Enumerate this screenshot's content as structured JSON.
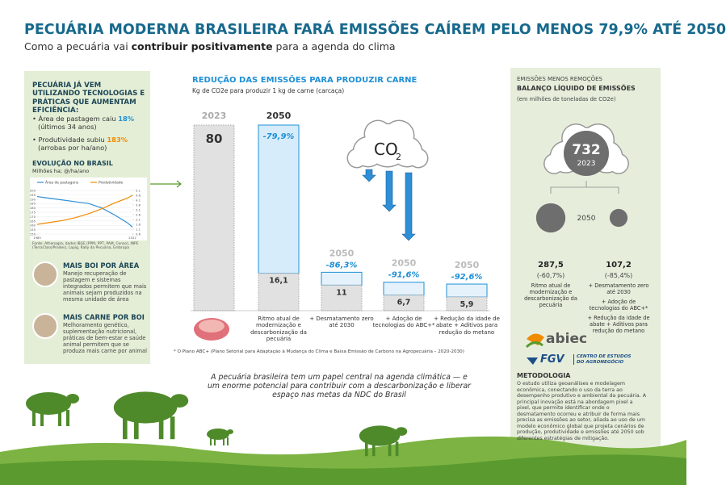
{
  "header": {
    "title": "PECUÁRIA MODERNA BRASILEIRA FARÁ EMISSÕES CAÍREM PELO MENOS 79,9% ATÉ 2050",
    "subtitle": [
      "Como a pecuária vai ",
      "contribuir positivamente",
      " para a agenda do clima"
    ]
  },
  "left_panel": {
    "heading": "PECUÁRIA JÁ VEM UTILIZANDO TECNOLOGIAS E PRÁTICAS QUE AUMENTAM EFICIÊNCIA:",
    "bullets": [
      {
        "text": "• Área de pastagem caiu ",
        "highlight": "18%",
        "note": "(últimos 34 anos)"
      },
      {
        "text": "• Produtividade subiu ",
        "highlight": "183%",
        "note": "(arrobas por ha/ano)"
      }
    ],
    "evolution": {
      "title": "EVOLUÇÃO NO BRASIL",
      "unit": "Milhões ha; @/ha/ano",
      "legend": [
        "Área de pastagens",
        "Produtividade"
      ],
      "x": [
        1985,
        1990,
        1995,
        2000,
        2005,
        2010,
        2015,
        2020,
        2022
      ],
      "pasture": [
        193,
        191,
        189,
        187,
        185,
        180,
        172,
        163,
        158
      ],
      "productivity": [
        1.6,
        1.8,
        2.0,
        2.3,
        2.7,
        3.2,
        3.8,
        4.3,
        4.6
      ],
      "xlim": [
        1985,
        2022
      ],
      "xticks": [
        1985,
        2022
      ],
      "ylim": [
        150,
        200
      ],
      "yticks": [
        150,
        155,
        160,
        165,
        170,
        175,
        180,
        185,
        190,
        195,
        200
      ],
      "y2lim": [
        0.6,
        5.1
      ],
      "y2ticks": [
        0.6,
        1.1,
        1.6,
        2.1,
        2.6,
        3.1,
        3.6,
        4.1,
        4.6,
        5.1
      ],
      "source": "Fonte: Athenagro, dados IBGE (PPM, PPT, PAM, Censo), INPE (TerraClass/Prodes), Lapig, Rally da Pecuária, Embrapa"
    },
    "features": [
      {
        "title": "MAIS BOI POR ÁREA",
        "text": "Manejo recuperação de pastagem e sistemas integrados permitem que mais animais sejam produzidos na mesma unidade de área"
      },
      {
        "title": "MAIS CARNE POR BOI",
        "text": "Melhoramento genético, suplementação nutricional, práticas de bem-estar e saúde animal permitem que se produza mais carne por animal"
      }
    ]
  },
  "emissions": {
    "title": "REDUÇÃO DAS EMISSÕES PARA PRODUZIR CARNE",
    "unit": "Kg de CO2e para produzir 1 kg de carne (carcaça)",
    "base": {
      "year": "2023",
      "value": 80
    },
    "scenarios": [
      {
        "year": "2050",
        "value": 16.1,
        "value_label": "16,1",
        "change": {
          "value": -79.9,
          "label": "-79,9%"
        },
        "caption": "Ritmo atual de modernização e descarbonização da pecuária"
      },
      {
        "year": "2050",
        "value": 11,
        "change": {
          "value": -86.3,
          "label": "-86,3%"
        },
        "caption": "+ Desmatamento zero até 2030"
      },
      {
        "year": "2050",
        "value": 6.7,
        "value_label": "6,7",
        "change": {
          "value": -91.6,
          "label": "-91,6%"
        },
        "caption": "+ Adoção de tecnologias do ABC+*"
      },
      {
        "year": "2050",
        "value": 5.9,
        "value_label": "5,9",
        "change": {
          "value": -92.6,
          "label": "-92,6%"
        },
        "caption": "+ Redução da idade de abate + Aditivos para redução do metano"
      }
    ],
    "co2": {
      "main": "CO",
      "sub": "2"
    },
    "footnote": "* O Plano ABC+ (Plano Setorial para Adaptação à Mudança do Clima e Baixa Emissão de Carbono na Agropecuária – 2020-2030)"
  },
  "quote": "A pecuária brasileira tem um papel central na agenda climática — e um enorme potencial para contribuir com a descarbonização e liberar espaço nas metas da NDC do Brasil",
  "balance": {
    "kicker": "EMISSÕES MENOS REMOÇÕES",
    "title": "BALANÇO LÍQUIDO DE EMISSÕES",
    "unit": "(em milhões de toneladas de CO2e)",
    "base": {
      "value": 732,
      "year": "2023"
    },
    "future_year": "2050",
    "scenarios": [
      {
        "value": 287.5,
        "value_label": "287,5",
        "change": {
          "value": -60.7,
          "label": "(-60,7%)"
        },
        "captions": [
          "Ritmo atual de modernização e descarbonização da pecuária"
        ]
      },
      {
        "value": 107.2,
        "value_label": "107,2",
        "change": {
          "value": -85.4,
          "label": "(-85,4%)"
        },
        "captions": [
          "+ Desmatamento zero até 2030",
          "+ Adoção de tecnologias do ABC+*",
          "+ Redução da idade de abate + Aditivos para redução do metano"
        ]
      }
    ]
  },
  "logos": {
    "abiec": "abiec",
    "fgv": "FGV",
    "fgv_center": "CENTRO DE ESTUDOS DO AGRONEGÓCIO"
  },
  "methodology": {
    "title": "METODOLOGIA",
    "text": "O estudo utiliza geoanálises e modelagem econômica, conectando o uso da terra ao desempenho produtivo e ambiental da pecuária. A principal inovação está na abordagem pixel a pixel, que permite identificar onde o desmatamento ocorreu e atribuir de forma mais precisa as emissões ao setor, aliada ao uso de um modelo econômico global que projeta cenários de produção, produtividade e emissões até 2050 sob diferentes estratégias de mitigação."
  }
}
